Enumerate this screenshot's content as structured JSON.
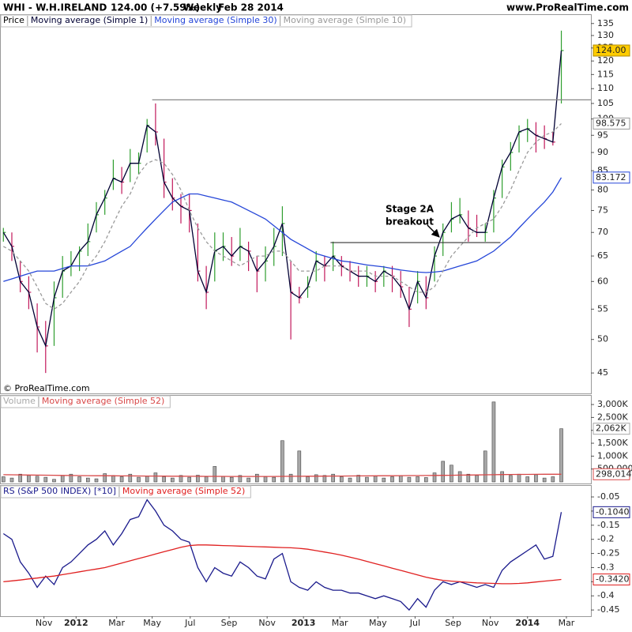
{
  "header": {
    "symbol": "WHI - W.H.IRELAND",
    "quote": "124.00 (+7.59%)",
    "period": "Weekly",
    "date": "Feb 28 2014",
    "site": "www.ProRealTime.com"
  },
  "chart_data": [
    {
      "type": "ohlc",
      "log_scale": true,
      "copyright": "© ProRealTime.com",
      "xlim": [
        -0.4,
        69.5
      ],
      "ylim": [
        42.2,
        139
      ],
      "yticks": [
        45,
        50,
        55,
        60,
        65,
        70,
        75,
        80,
        85,
        90,
        95,
        100,
        105,
        110,
        115,
        120,
        125,
        130,
        135
      ],
      "price": {
        "name": "Price",
        "color": "#000000",
        "up_color": "#2e9e2e",
        "down_color": "#c2185b",
        "high": [
          71,
          70,
          64,
          61,
          56,
          53,
          60,
          65,
          66,
          67,
          72,
          77,
          80,
          88,
          86,
          91,
          90,
          100,
          105,
          94,
          83,
          79,
          79,
          72,
          63,
          70,
          70,
          69,
          71,
          68,
          65,
          67,
          71,
          76,
          64,
          59,
          61,
          66,
          65,
          68,
          65,
          64,
          63,
          63,
          62,
          63,
          63,
          62,
          59,
          62,
          61,
          67,
          72,
          77,
          78,
          75,
          74,
          72,
          80,
          88,
          93,
          98,
          100,
          99,
          98,
          96,
          132
        ],
        "low": [
          68,
          64,
          58,
          55,
          48,
          45,
          49,
          57,
          61,
          62,
          65,
          70,
          74,
          80,
          79,
          82,
          84,
          90,
          92,
          78,
          75,
          72,
          70,
          60,
          55,
          60,
          64,
          63,
          64,
          62,
          58,
          60,
          63,
          65,
          50,
          56,
          57,
          60,
          60,
          62,
          61,
          60,
          59,
          59,
          58,
          59,
          58,
          57,
          52,
          56,
          55,
          60,
          65,
          70,
          72,
          68,
          69,
          68,
          70,
          78,
          85,
          90,
          93,
          90,
          91,
          92,
          105
        ]
      },
      "series": [
        {
          "name": "Moving average (Simple 1)",
          "color": "#000033",
          "last_label": "124.00",
          "last_label_fill": "#ffcc00",
          "values": [
            70,
            67,
            60,
            58,
            52,
            49,
            57,
            62,
            63,
            66,
            68,
            74,
            78,
            83,
            82,
            87,
            87,
            98,
            96,
            82,
            78,
            76,
            75,
            62,
            58,
            66,
            67,
            65,
            67,
            66,
            62,
            64,
            67,
            72,
            58,
            57,
            59,
            64,
            63,
            65,
            63,
            62,
            61,
            61,
            60,
            62,
            61,
            59,
            55,
            60,
            57,
            65,
            70,
            73,
            74,
            71,
            70,
            70,
            78,
            86,
            90,
            96,
            97,
            95,
            94,
            93,
            124
          ]
        },
        {
          "name": "Moving average (Simple 30)",
          "color": "#2546d8",
          "last_label": "83.172",
          "values": [
            60,
            60.5,
            61,
            61.5,
            62,
            62,
            62,
            62.5,
            63,
            63,
            63,
            63.5,
            64,
            65,
            66,
            67,
            69,
            71,
            73,
            75,
            77,
            78,
            79,
            79,
            78.5,
            78,
            77.5,
            77,
            76,
            75,
            74,
            73,
            71.5,
            70,
            68.5,
            67.5,
            66.5,
            65.5,
            65,
            64.5,
            64,
            63.8,
            63.5,
            63.2,
            63,
            62.8,
            62.5,
            62.2,
            62,
            61.8,
            61.7,
            61.8,
            62,
            62.5,
            63,
            63.5,
            64,
            65,
            66,
            67.5,
            69,
            71,
            73,
            75,
            77,
            79.5,
            83.172
          ]
        },
        {
          "name": "Moving average (Simple 10)",
          "color": "#9a9a9a",
          "dash": true,
          "last_label": "98.575",
          "values": [
            67,
            66,
            64,
            62,
            59,
            56,
            55,
            56,
            58,
            60,
            63,
            65,
            68,
            72,
            76,
            79,
            84,
            87,
            88,
            87,
            84,
            80,
            75,
            71,
            68,
            66,
            65,
            64,
            63,
            64,
            65,
            65,
            66,
            66,
            64,
            62,
            62,
            62,
            63,
            63,
            63,
            62,
            62,
            62,
            61,
            61,
            61,
            60,
            59,
            58,
            58,
            59,
            62,
            65,
            67,
            69,
            71,
            72,
            73,
            76,
            80,
            85,
            90,
            93,
            95,
            96,
            98.575
          ]
        }
      ],
      "levels": [
        {
          "value": 106.2,
          "x": [
            17.6,
            69.5
          ],
          "color": "#888888"
        },
        {
          "value": 67.8,
          "x": [
            38.7,
            58.8
          ],
          "color": "#333333"
        }
      ],
      "annotation": [
        "Stage 2A",
        "breakout"
      ]
    },
    {
      "type": "bar",
      "xlim": [
        -0.4,
        69.5
      ],
      "ylim": [
        0,
        3370000
      ],
      "yticks": [
        {
          "value": 500000,
          "label": "500,000"
        },
        {
          "value": 1000000,
          "label": "1,000K"
        },
        {
          "value": 1500000,
          "label": "1,500K"
        },
        {
          "value": 2000000,
          "label": "2,000K"
        },
        {
          "value": 2500000,
          "label": "2,500K"
        },
        {
          "value": 3000000,
          "label": "3,000K"
        }
      ],
      "series": [
        {
          "name": "Volume",
          "color": "#a8a8a8",
          "last_label": "2,062K",
          "values": [
            200000,
            150000,
            300000,
            250000,
            220000,
            180000,
            100000,
            250000,
            300000,
            200000,
            150000,
            120000,
            320000,
            250000,
            200000,
            300000,
            180000,
            220000,
            350000,
            200000,
            150000,
            250000,
            180000,
            260000,
            200000,
            600000,
            220000,
            180000,
            250000,
            150000,
            300000,
            200000,
            180000,
            1600000,
            300000,
            1200000,
            200000,
            280000,
            250000,
            300000,
            200000,
            150000,
            260000,
            180000,
            220000,
            150000,
            200000,
            250000,
            180000,
            200000,
            170000,
            350000,
            800000,
            650000,
            400000,
            300000,
            250000,
            1200000,
            3100000,
            400000,
            250000,
            300000,
            200000,
            280000,
            150000,
            200000,
            2062000
          ]
        },
        {
          "name": "Moving average (Simple 52)",
          "color": "#d84848",
          "last_label": "298,014",
          "values": [
            280000,
            276000,
            272000,
            268000,
            264000,
            260000,
            256000,
            252000,
            248000,
            245000,
            242000,
            240000,
            238000,
            236000,
            234000,
            232000,
            230000,
            228000,
            226000,
            224000,
            222000,
            220000,
            218000,
            216000,
            215000,
            214000,
            213000,
            212000,
            211000,
            210000,
            210000,
            210000,
            212000,
            214000,
            216000,
            218000,
            220000,
            222000,
            224000,
            226000,
            228000,
            230000,
            232000,
            234000,
            236000,
            238000,
            240000,
            242000,
            244000,
            246000,
            248000,
            250000,
            254000,
            258000,
            262000,
            266000,
            270000,
            275000,
            280000,
            284000,
            287000,
            290000,
            292000,
            294000,
            296000,
            297000,
            298014
          ]
        }
      ]
    },
    {
      "type": "line",
      "xlim": [
        -0.4,
        69.5
      ],
      "ylim": [
        -0.472,
        -0.008
      ],
      "yticks": [
        -0.05,
        -0.1,
        -0.15,
        -0.2,
        -0.25,
        -0.3,
        -0.35,
        -0.4,
        -0.45
      ],
      "xticks": [
        {
          "value": 4.8,
          "label": "Nov"
        },
        {
          "value": 8.6,
          "label": "2012"
        },
        {
          "value": 13.4,
          "label": "Mar"
        },
        {
          "value": 17.6,
          "label": "May"
        },
        {
          "value": 22.1,
          "label": "Jul"
        },
        {
          "value": 26.7,
          "label": "Sep"
        },
        {
          "value": 31.2,
          "label": "Nov"
        },
        {
          "value": 35.5,
          "label": "2013"
        },
        {
          "value": 39.8,
          "label": "Mar"
        },
        {
          "value": 44.3,
          "label": "May"
        },
        {
          "value": 48.7,
          "label": "Jul"
        },
        {
          "value": 53.2,
          "label": "Sep"
        },
        {
          "value": 57.6,
          "label": "Nov"
        },
        {
          "value": 62,
          "label": "2014"
        },
        {
          "value": 66.6,
          "label": "Mar"
        }
      ],
      "series": [
        {
          "name": "RS (S&P 500 INDEX) [*10]",
          "color": "#1a1a8c",
          "last_label": "-0.1040",
          "values": [
            -0.18,
            -0.2,
            -0.28,
            -0.32,
            -0.37,
            -0.33,
            -0.36,
            -0.3,
            -0.28,
            -0.25,
            -0.22,
            -0.2,
            -0.17,
            -0.22,
            -0.18,
            -0.13,
            -0.12,
            -0.06,
            -0.1,
            -0.15,
            -0.17,
            -0.2,
            -0.21,
            -0.3,
            -0.35,
            -0.3,
            -0.32,
            -0.33,
            -0.28,
            -0.3,
            -0.33,
            -0.34,
            -0.27,
            -0.25,
            -0.35,
            -0.37,
            -0.38,
            -0.35,
            -0.37,
            -0.38,
            -0.38,
            -0.39,
            -0.39,
            -0.4,
            -0.41,
            -0.4,
            -0.41,
            -0.42,
            -0.45,
            -0.41,
            -0.44,
            -0.38,
            -0.35,
            -0.36,
            -0.35,
            -0.36,
            -0.37,
            -0.36,
            -0.37,
            -0.31,
            -0.28,
            -0.26,
            -0.24,
            -0.22,
            -0.27,
            -0.26,
            -0.104
          ]
        },
        {
          "name": "Moving average (Simple 52)",
          "color": "#e02020",
          "last_label": "-0.3420",
          "values": [
            -0.35,
            -0.347,
            -0.344,
            -0.34,
            -0.337,
            -0.333,
            -0.33,
            -0.325,
            -0.32,
            -0.315,
            -0.31,
            -0.305,
            -0.3,
            -0.292,
            -0.284,
            -0.276,
            -0.268,
            -0.26,
            -0.252,
            -0.244,
            -0.236,
            -0.228,
            -0.222,
            -0.22,
            -0.22,
            -0.221,
            -0.222,
            -0.223,
            -0.224,
            -0.225,
            -0.226,
            -0.227,
            -0.228,
            -0.229,
            -0.23,
            -0.232,
            -0.235,
            -0.24,
            -0.245,
            -0.25,
            -0.256,
            -0.263,
            -0.27,
            -0.278,
            -0.286,
            -0.294,
            -0.302,
            -0.31,
            -0.318,
            -0.326,
            -0.334,
            -0.34,
            -0.345,
            -0.348,
            -0.35,
            -0.352,
            -0.354,
            -0.355,
            -0.356,
            -0.357,
            -0.357,
            -0.356,
            -0.354,
            -0.351,
            -0.348,
            -0.345,
            -0.342
          ]
        }
      ]
    }
  ]
}
